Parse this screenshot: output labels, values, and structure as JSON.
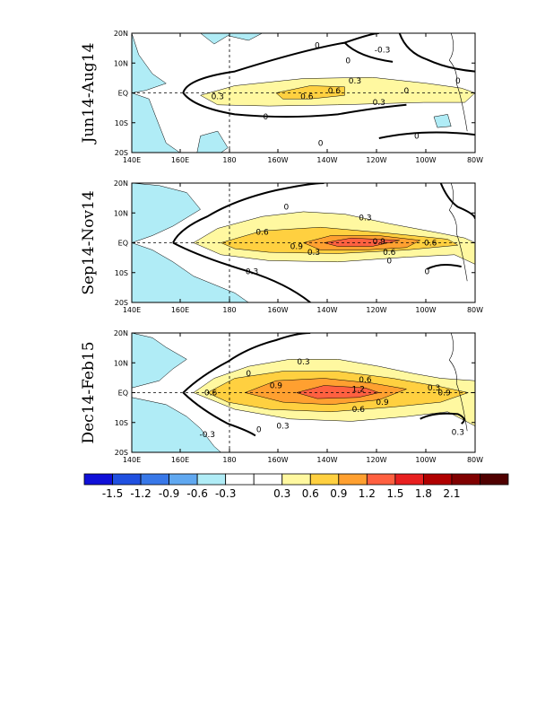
{
  "panels": [
    {
      "title": "Jun14-Aug14",
      "contour_labels": [
        "0",
        "0",
        "0",
        "0",
        "0",
        "0",
        "0.3",
        "0.6",
        "0.6",
        "0.3",
        "0.3",
        "-0.3",
        "0"
      ]
    },
    {
      "title": "Sep14-Nov14",
      "contour_labels": [
        "0",
        "0.3",
        "0.6",
        "0.9",
        "0.9",
        "0.6",
        "0.6",
        "0.3",
        "0.3",
        "0",
        "0"
      ]
    },
    {
      "title": "Dec14-Feb15",
      "contour_labels": [
        "0.3",
        "0.6",
        "0.9",
        "1.2",
        "0.9",
        "0.6",
        "0.6",
        "0.3",
        "0.3",
        "0",
        "-0.3",
        "0",
        "0.9",
        "0.3"
      ]
    }
  ],
  "x_ticks": [
    "140E",
    "160E",
    "180",
    "160W",
    "140W",
    "120W",
    "100W",
    "80W"
  ],
  "y_ticks": [
    "20N",
    "10N",
    "EQ",
    "10S",
    "20S"
  ],
  "colorbar": {
    "colors": [
      "#1010d8",
      "#2050e0",
      "#3878e8",
      "#60a8f0",
      "#b0ecf6",
      "#ffffff",
      "#ffffff",
      "#fff8a0",
      "#ffd040",
      "#ffa030",
      "#ff6040",
      "#e82020",
      "#b00000",
      "#800000",
      "#500000"
    ],
    "labels": [
      "-1.5",
      "-1.2",
      "-0.9",
      "-0.6",
      "-0.3",
      "0.3",
      "0.6",
      "0.9",
      "1.2",
      "1.5",
      "1.8",
      "2.1"
    ]
  }
}
